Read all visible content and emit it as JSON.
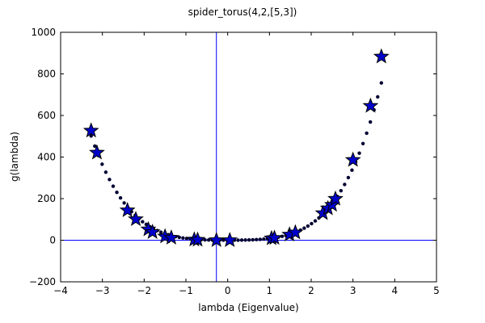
{
  "chart_data": {
    "type": "scatter",
    "title": "spider_torus(4,2,[5,3])",
    "xlabel": "lambda (Eigenvalue)",
    "ylabel": "g(lambda)",
    "xlim": [
      -4,
      5
    ],
    "ylim": [
      -200,
      1000
    ],
    "x_ticks": [
      -4,
      -3,
      -2,
      -1,
      0,
      1,
      2,
      3,
      4,
      5
    ],
    "y_ticks": [
      -200,
      0,
      200,
      400,
      600,
      800,
      1000
    ],
    "x_tick_labels": [
      "−4",
      "−3",
      "−2",
      "−1",
      "0",
      "1",
      "2",
      "3",
      "4",
      "5"
    ],
    "y_tick_labels": [
      "−200",
      "0",
      "200",
      "400",
      "600",
      "800",
      "1000"
    ],
    "reference_lines": {
      "vertical_x": -0.27,
      "horizontal_y": 0
    },
    "grid": false,
    "curve_x_range": [
      -3.27,
      3.68
    ],
    "curve_points": 80,
    "curve_coefficients": [
      0,
      0,
      4.833,
      -0.287,
      3.846
    ],
    "star_points": {
      "x": [
        -3.27,
        -3.13,
        -2.4,
        -2.2,
        -1.9,
        -1.8,
        -1.5,
        -1.35,
        -0.8,
        -0.72,
        -0.27,
        0.05,
        1.05,
        1.12,
        1.48,
        1.62,
        2.28,
        2.4,
        2.5,
        2.58,
        3.0,
        3.42,
        3.68
      ],
      "y": [
        527,
        421,
        144,
        101,
        52,
        39,
        18,
        12,
        3,
        2,
        0,
        0,
        9,
        11,
        27,
        37,
        130,
        153,
        170,
        199,
        386,
        646,
        883
      ]
    },
    "colors": {
      "marker_fill": "#0000cc",
      "curve_dots": "#000033",
      "reference_line": "#0000ff",
      "frame": "#000000"
    }
  }
}
